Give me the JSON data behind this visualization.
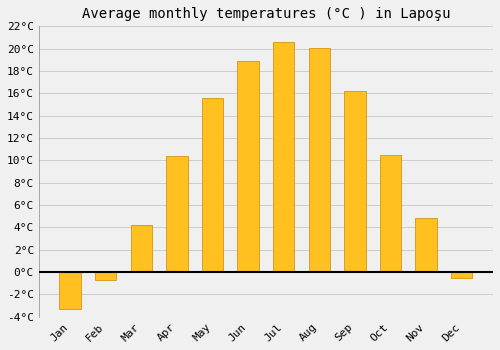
{
  "title": "Average monthly temperatures (°C ) in Lapoşu",
  "months": [
    "Jan",
    "Feb",
    "Mar",
    "Apr",
    "May",
    "Jun",
    "Jul",
    "Aug",
    "Sep",
    "Oct",
    "Nov",
    "Dec"
  ],
  "values": [
    -3.3,
    -0.7,
    4.2,
    10.4,
    15.6,
    18.9,
    20.6,
    20.1,
    16.2,
    10.5,
    4.8,
    -0.5
  ],
  "bar_color": "#FFC020",
  "bar_edge_color": "#CC8800",
  "background_color": "#F0F0F0",
  "grid_color": "#CCCCCC",
  "ylim": [
    -4,
    22
  ],
  "yticks": [
    -4,
    -2,
    0,
    2,
    4,
    6,
    8,
    10,
    12,
    14,
    16,
    18,
    20,
    22
  ],
  "title_fontsize": 10,
  "tick_fontsize": 8,
  "zero_line_color": "#000000"
}
